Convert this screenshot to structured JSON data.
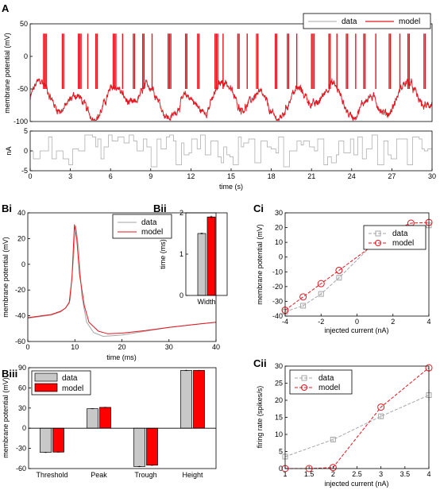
{
  "colors": {
    "data": "#a6a6a6",
    "model": "#e6141e",
    "bar_data": "#c8c8c8",
    "bar_model": "#ff0000",
    "axis": "#000000"
  },
  "panel_labels": {
    "A": "A",
    "Bi": "Bi",
    "Bii": "Bii",
    "Biii": "Biii",
    "Ci": "Ci",
    "Cii": "Cii"
  },
  "legend": {
    "data": "data",
    "model": "model"
  },
  "chart_data": [
    {
      "id": "A_voltage",
      "type": "line",
      "ylabel": "membrane potential (mV)",
      "xlabel": "",
      "xlim": [
        0,
        30
      ],
      "ylim": [
        -100,
        50
      ],
      "yticks": [
        -100,
        -50,
        0,
        50
      ],
      "series": [
        {
          "name": "data",
          "description": "recorded membrane potential trace, 0-30 s"
        },
        {
          "name": "model",
          "description": "model membrane potential trace, 0-30 s"
        }
      ],
      "legend_position": "top-right"
    },
    {
      "id": "A_current",
      "type": "line",
      "ylabel": "nA",
      "xlabel": "time (s)",
      "xlim": [
        0,
        30
      ],
      "ylim": [
        -5,
        5
      ],
      "yticks": [
        -5,
        0,
        5
      ],
      "xticks": [
        0,
        3,
        6,
        9,
        12,
        15,
        18,
        21,
        24,
        27,
        30
      ],
      "series": [
        {
          "name": "injected current",
          "description": "piecewise-constant current steps, approx -4 to 4 nA"
        }
      ]
    },
    {
      "id": "Bi",
      "type": "line",
      "ylabel": "membrane potential (mV)",
      "xlabel": "time (ms)",
      "xlim": [
        0,
        40
      ],
      "ylim": [
        -60,
        40
      ],
      "xticks": [
        0,
        10,
        20,
        30,
        40
      ],
      "yticks": [
        -60,
        -40,
        -20,
        0,
        20,
        40
      ],
      "series": [
        {
          "name": "data",
          "x": [
            0,
            5,
            7,
            8,
            9,
            9.6,
            10.2,
            10.8,
            11.5,
            12.5,
            14,
            16,
            18,
            20,
            25,
            30,
            35,
            40
          ],
          "y": [
            -42,
            -39.5,
            -37,
            -34,
            -28,
            0,
            30,
            12,
            -25,
            -45,
            -53,
            -56,
            -55.5,
            -55,
            -52,
            -49,
            -47,
            -45
          ]
        },
        {
          "name": "model",
          "x": [
            0,
            5,
            7,
            8,
            8.8,
            9.4,
            9.9,
            10.4,
            11,
            12,
            13,
            15,
            17,
            20,
            25,
            30,
            35,
            40
          ],
          "y": [
            -41.5,
            -39,
            -36.5,
            -34,
            -30,
            -10,
            31,
            20,
            -8,
            -32,
            -45,
            -52,
            -54,
            -53.5,
            -51.5,
            -49,
            -47,
            -45
          ]
        }
      ],
      "legend_position": "top-right"
    },
    {
      "id": "Bii",
      "type": "bar",
      "ylabel": "time (ms)",
      "categories": [
        "Width"
      ],
      "ylim": [
        0,
        2
      ],
      "yticks": [
        0,
        1,
        2
      ],
      "series": [
        {
          "name": "data",
          "values": [
            1.5
          ],
          "errors": [
            0.02
          ]
        },
        {
          "name": "model",
          "values": [
            1.9
          ],
          "errors": [
            0.03
          ]
        }
      ]
    },
    {
      "id": "Biii",
      "type": "bar",
      "ylabel": "membrane potential (mV)",
      "categories": [
        "Threshold",
        "Peak",
        "Trough",
        "Height"
      ],
      "ylim": [
        -60,
        90
      ],
      "yticks": [
        -60,
        -30,
        0,
        30,
        60,
        90
      ],
      "series": [
        {
          "name": "data",
          "values": [
            -36,
            29,
            -57,
            86
          ],
          "errors": [
            0.7,
            0.6,
            0.8,
            0.9
          ]
        },
        {
          "name": "model",
          "values": [
            -35.5,
            31,
            -55,
            86
          ],
          "errors": [
            0.6,
            0.7,
            0.8,
            0.8
          ]
        }
      ],
      "legend_position": "top-left"
    },
    {
      "id": "Ci",
      "type": "line",
      "ylabel": "membrane potential (mV)",
      "xlabel": "injected current (nA)",
      "xlim": [
        -4,
        4
      ],
      "ylim": [
        -40,
        30
      ],
      "xticks": [
        -4,
        -2,
        0,
        2,
        4
      ],
      "yticks": [
        -40,
        -30,
        -20,
        -10,
        0,
        10,
        20,
        30
      ],
      "series": [
        {
          "name": "data",
          "x": [
            -4,
            -3,
            -2,
            -1,
            1,
            2,
            3,
            4
          ],
          "y": [
            -37,
            -33,
            -25,
            -14,
            10,
            17,
            20,
            21.5
          ],
          "errors": [
            1,
            1,
            1,
            1,
            1.2,
            1,
            1.5,
            1.5
          ]
        },
        {
          "name": "model",
          "x": [
            -4,
            -3,
            -2,
            -1,
            1,
            2,
            3,
            4
          ],
          "y": [
            -36,
            -27,
            -18,
            -9,
            9,
            18,
            23,
            23.5
          ]
        }
      ],
      "legend_position": "bottom-right"
    },
    {
      "id": "Cii",
      "type": "line",
      "ylabel": "firing rate (spikes/s)",
      "xlabel": "injected current (nA)",
      "xlim": [
        1,
        4
      ],
      "ylim": [
        0,
        30
      ],
      "xticks": [
        1,
        1.5,
        2,
        2.5,
        3,
        3.5,
        4
      ],
      "yticks": [
        0,
        5,
        10,
        15,
        20,
        25,
        30
      ],
      "series": [
        {
          "name": "data",
          "x": [
            1,
            2,
            3,
            4
          ],
          "y": [
            3.5,
            8.5,
            15.3,
            21.5
          ],
          "errors": [
            0.8,
            0.6,
            0.8,
            1.8
          ]
        },
        {
          "name": "model",
          "x": [
            1,
            1.5,
            2,
            3,
            4
          ],
          "y": [
            0,
            0,
            0.3,
            18,
            29.5
          ]
        }
      ],
      "legend_position": "top-left"
    }
  ]
}
